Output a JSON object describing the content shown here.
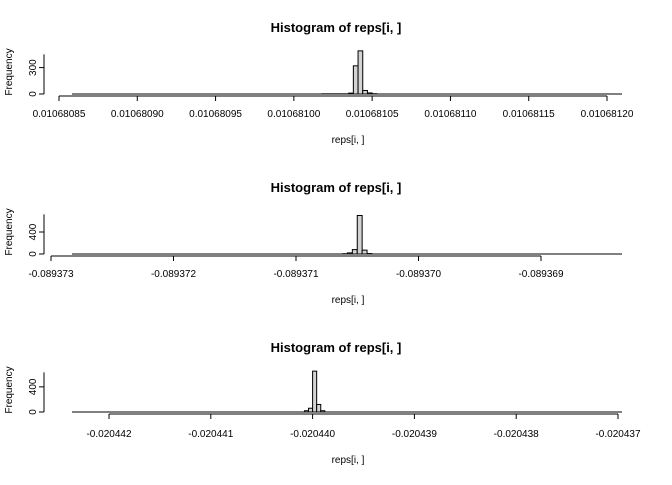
{
  "chart_data": [
    {
      "type": "bar",
      "title": "Histogram of reps[i, ]",
      "xlabel": "reps[i, ]",
      "ylabel": "Frequency",
      "xlim": [
        0.01068085,
        0.0106812
      ],
      "x_ticks": [
        "0.01068085",
        "0.01068090",
        "0.01068095",
        "0.01068100",
        "0.01068105",
        "0.01068110",
        "0.01068115",
        "0.01068120"
      ],
      "y_ticks": [
        "0",
        "300"
      ],
      "ylim": [
        0,
        500
      ],
      "bin_width": 5e-10,
      "bins_start": [
        0.010681,
        0.010681,
        0.010681,
        0.010681,
        0.010681,
        0.010681,
        0.010681
      ],
      "bin_edges": [
        0.010681018,
        0.010681035,
        0.010681038,
        0.010681041,
        0.010681044,
        0.010681047,
        0.01068105,
        0.010681053
      ],
      "values": [
        2,
        10,
        320,
        490,
        40,
        12,
        3
      ]
    },
    {
      "type": "bar",
      "title": "Histogram of reps[i, ]",
      "xlabel": "reps[i, ]",
      "ylabel": "Frequency",
      "xlim": [
        -0.089373,
        -0.0893685
      ],
      "x_ticks": [
        "-0.089373",
        "-0.089372",
        "-0.089371",
        "-0.089370",
        "-0.089369"
      ],
      "y_ticks": [
        "0",
        "400"
      ],
      "ylim": [
        0,
        800
      ],
      "bin_edges": [
        -0.08937062,
        -0.08937058,
        -0.08937054,
        -0.0893705,
        -0.08937046,
        -0.08937042,
        -0.08937038
      ],
      "values": [
        5,
        20,
        80,
        700,
        70,
        8
      ]
    },
    {
      "type": "bar",
      "title": "Histogram of reps[i, ]",
      "xlabel": "reps[i, ]",
      "ylabel": "Frequency",
      "xlim": [
        -0.0204424,
        -0.020437
      ],
      "x_ticks": [
        "-0.020442",
        "-0.020441",
        "-0.020440",
        "-0.020439",
        "-0.020438",
        "-0.020437"
      ],
      "y_ticks": [
        "0",
        "400"
      ],
      "ylim": [
        0,
        700
      ],
      "bin_edges": [
        -0.02044008,
        -0.02044004,
        -0.02044,
        -0.02043996,
        -0.02043992,
        -0.02043988
      ],
      "values": [
        20,
        60,
        650,
        120,
        20
      ]
    }
  ]
}
